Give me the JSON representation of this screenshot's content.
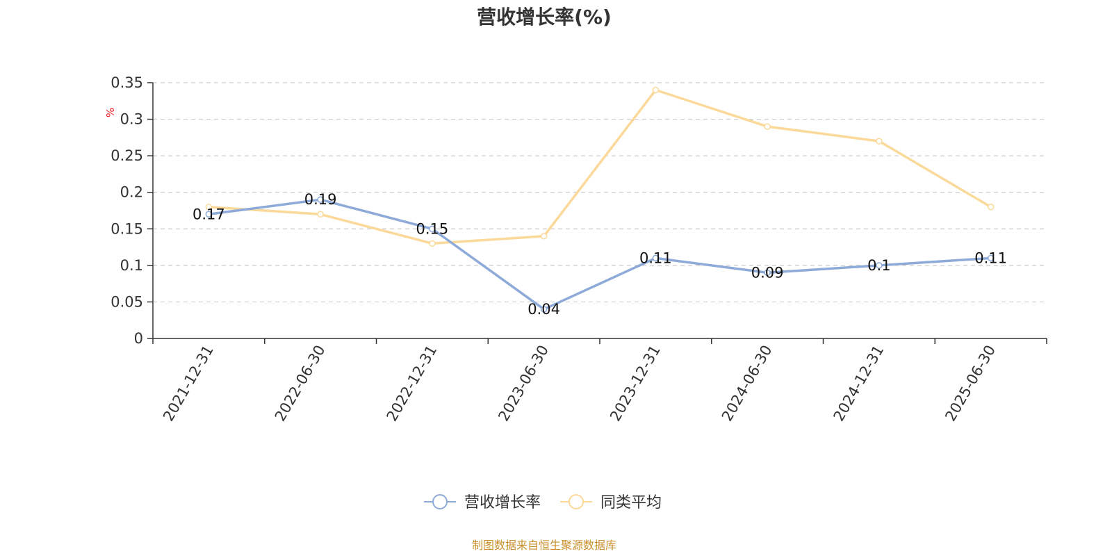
{
  "chart_data": {
    "type": "line",
    "title": "营收增长率(%)",
    "ylabel": "%",
    "xlabel": "",
    "x": [
      "2021-12-31",
      "2022-06-30",
      "2022-12-31",
      "2023-06-30",
      "2023-12-31",
      "2024-06-30",
      "2024-12-31",
      "2025-06-30"
    ],
    "ylim": [
      0,
      0.35
    ],
    "yticks": [
      "0",
      "0.05",
      "0.1",
      "0.15",
      "0.2",
      "0.25",
      "0.3",
      "0.35"
    ],
    "grid": "horizontal dashed",
    "legend_position": "bottom-center",
    "series": [
      {
        "name": "营收增长率",
        "values": [
          0.17,
          0.19,
          0.15,
          0.04,
          0.11,
          0.09,
          0.1,
          0.11
        ],
        "labels": [
          "0.17",
          "0.19",
          "0.15",
          "0.04",
          "0.11",
          "0.09",
          "0.1",
          "0.11"
        ],
        "color": "#8eaad8",
        "show_labels": true
      },
      {
        "name": "同类平均",
        "values": [
          0.18,
          0.17,
          0.13,
          0.14,
          0.34,
          0.29,
          0.27,
          0.18
        ],
        "color": "#fbd99a",
        "show_labels": false
      }
    ]
  },
  "source_note": "制图数据来自恒生聚源数据库",
  "colors": {
    "unit_label": "#ee2222",
    "source_note": "#c9902a",
    "axis": "#333333",
    "grid": "#cccccc"
  }
}
